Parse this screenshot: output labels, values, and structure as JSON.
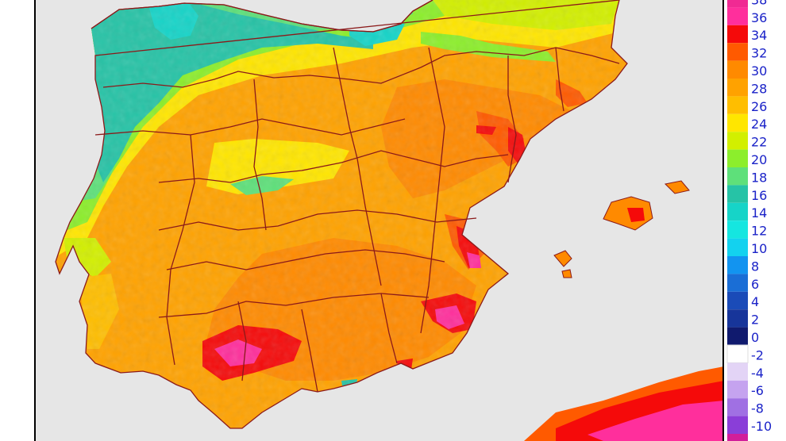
{
  "map": {
    "kind": "temperature",
    "colors": {
      "sea": "#e6e6e6",
      "frame": "#000000",
      "border": "#8b1a1a"
    }
  },
  "legend": {
    "stops": [
      {
        "label": "38",
        "color": "#f02a93"
      },
      {
        "label": "36",
        "color": "#ff2f9c"
      },
      {
        "label": "34",
        "color": "#f50a0a"
      },
      {
        "label": "32",
        "color": "#ff5a00"
      },
      {
        "label": "30",
        "color": "#ff8a00"
      },
      {
        "label": "28",
        "color": "#ffa200"
      },
      {
        "label": "26",
        "color": "#ffbe00"
      },
      {
        "label": "24",
        "color": "#ffe600"
      },
      {
        "label": "22",
        "color": "#d2ef00"
      },
      {
        "label": "20",
        "color": "#8cee2c"
      },
      {
        "label": "18",
        "color": "#5ee07a"
      },
      {
        "label": "16",
        "color": "#26c3a6"
      },
      {
        "label": "14",
        "color": "#16d4c8"
      },
      {
        "label": "12",
        "color": "#15e6e0"
      },
      {
        "label": "10",
        "color": "#13d2ef"
      },
      {
        "label": "8",
        "color": "#1294f0"
      },
      {
        "label": "6",
        "color": "#1a6ed6"
      },
      {
        "label": "4",
        "color": "#1a4bb8"
      },
      {
        "label": "2",
        "color": "#17359a"
      },
      {
        "label": "0",
        "color": "#101a6e"
      },
      {
        "label": "-2",
        "color": "#ffffff"
      },
      {
        "label": "-4",
        "color": "#e3d4f6"
      },
      {
        "label": "-6",
        "color": "#c5a3ef"
      },
      {
        "label": "-8",
        "color": "#a070e3"
      },
      {
        "label": "-10",
        "color": "#8a3ed8"
      },
      {
        "label": "",
        "color": "#d21e9a"
      }
    ]
  }
}
